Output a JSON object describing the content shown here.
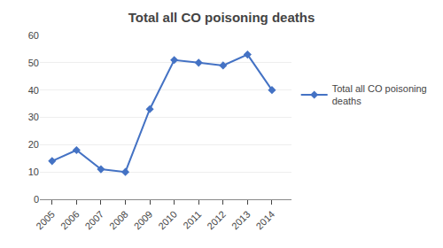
{
  "chart_data": {
    "type": "line",
    "title": "Total all CO poisoning deaths",
    "x": [
      2005,
      2006,
      2007,
      2008,
      2009,
      2010,
      2011,
      2012,
      2013,
      2014
    ],
    "series": [
      {
        "name": "Total all CO poisoning\ndeaths",
        "color": "#4472C4",
        "marker": "diamond",
        "values": [
          14,
          18,
          11,
          10,
          33,
          51,
          50,
          49,
          53,
          40
        ]
      }
    ],
    "xlim": [
      2004.5,
      2014.8
    ],
    "xticks": [
      2005,
      2006,
      2007,
      2008,
      2009,
      2010,
      2011,
      2012,
      2013,
      2014
    ],
    "ylim": [
      0,
      60
    ],
    "yticks": [
      0,
      10,
      20,
      30,
      40,
      50,
      60
    ],
    "grid": "y",
    "legend": "right"
  }
}
